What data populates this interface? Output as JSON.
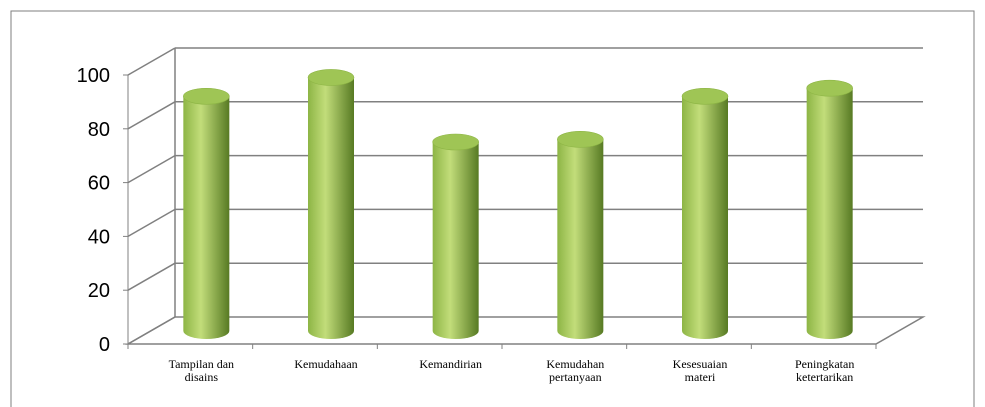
{
  "chart_data": {
    "type": "bar",
    "title": "",
    "xlabel": "",
    "ylabel": "",
    "categories": [
      [
        "Tampilan dan",
        "disains"
      ],
      [
        "Kemudahaan"
      ],
      [
        "Kemandirian"
      ],
      [
        "Kemudahan",
        "pertanyaan"
      ],
      [
        "Kesesuaian",
        "materi"
      ],
      [
        "Peningkatan",
        "ketertarikan"
      ]
    ],
    "values": [
      88,
      95,
      71,
      72,
      88,
      91
    ],
    "ylim": [
      0,
      100
    ],
    "yticks": [
      0,
      20,
      40,
      60,
      80,
      100
    ],
    "grid": true,
    "style": "3d-cylinder",
    "colors": {
      "bar_light": "#c2dd7a",
      "bar_mid": "#8db545",
      "bar_dark": "#577a23",
      "bar_top": "#9fc555",
      "grid": "#808080",
      "frame": "#7f7f7f"
    }
  }
}
